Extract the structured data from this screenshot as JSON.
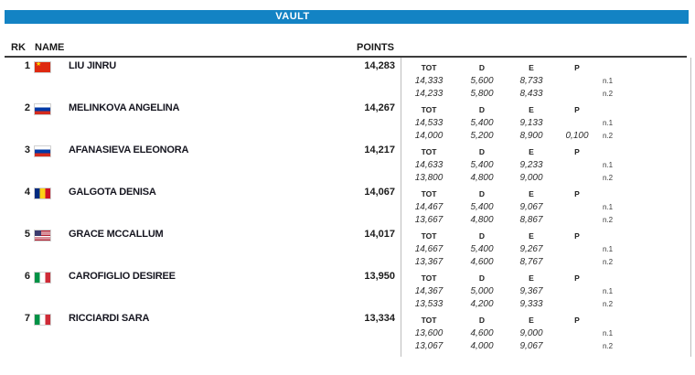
{
  "title_bar": {
    "label": "VAULT",
    "color": "#1383c4"
  },
  "table": {
    "headers": {
      "rank": "RK",
      "name": "NAME",
      "points": "POINTS"
    },
    "sub_headers": [
      "TOT",
      "D",
      "E",
      "P"
    ],
    "attempt_labels": [
      "n.1",
      "n.2"
    ],
    "rows": [
      {
        "rank": "1",
        "country": "china",
        "name": "LIU JINRU",
        "points": "14,283",
        "attempts": [
          {
            "tot": "14,333",
            "d": "5,600",
            "e": "8,733",
            "p": ""
          },
          {
            "tot": "14,233",
            "d": "5,800",
            "e": "8,433",
            "p": ""
          }
        ]
      },
      {
        "rank": "2",
        "country": "russia",
        "name": "MELINKOVA ANGELINA",
        "points": "14,267",
        "attempts": [
          {
            "tot": "14,533",
            "d": "5,400",
            "e": "9,133",
            "p": ""
          },
          {
            "tot": "14,000",
            "d": "5,200",
            "e": "8,900",
            "p": "0,100"
          }
        ]
      },
      {
        "rank": "3",
        "country": "russia",
        "name": "AFANASIEVA ELEONORA",
        "points": "14,217",
        "attempts": [
          {
            "tot": "14,633",
            "d": "5,400",
            "e": "9,233",
            "p": ""
          },
          {
            "tot": "13,800",
            "d": "4,800",
            "e": "9,000",
            "p": ""
          }
        ]
      },
      {
        "rank": "4",
        "country": "romania",
        "name": "GALGOTA DENISA",
        "points": "14,067",
        "attempts": [
          {
            "tot": "14,467",
            "d": "5,400",
            "e": "9,067",
            "p": ""
          },
          {
            "tot": "13,667",
            "d": "4,800",
            "e": "8,867",
            "p": ""
          }
        ]
      },
      {
        "rank": "5",
        "country": "usa",
        "name": "GRACE MCCALLUM",
        "points": "14,017",
        "attempts": [
          {
            "tot": "14,667",
            "d": "5,400",
            "e": "9,267",
            "p": ""
          },
          {
            "tot": "13,367",
            "d": "4,600",
            "e": "8,767",
            "p": ""
          }
        ]
      },
      {
        "rank": "6",
        "country": "italy",
        "name": "CAROFIGLIO DESIREE",
        "points": "13,950",
        "attempts": [
          {
            "tot": "14,367",
            "d": "5,000",
            "e": "9,367",
            "p": ""
          },
          {
            "tot": "13,533",
            "d": "4,200",
            "e": "9,333",
            "p": ""
          }
        ]
      },
      {
        "rank": "7",
        "country": "italy",
        "name": "RICCIARDI SARA",
        "points": "13,334",
        "attempts": [
          {
            "tot": "13,600",
            "d": "4,600",
            "e": "9,000",
            "p": ""
          },
          {
            "tot": "13,067",
            "d": "4,000",
            "e": "9,067",
            "p": ""
          }
        ]
      }
    ]
  }
}
